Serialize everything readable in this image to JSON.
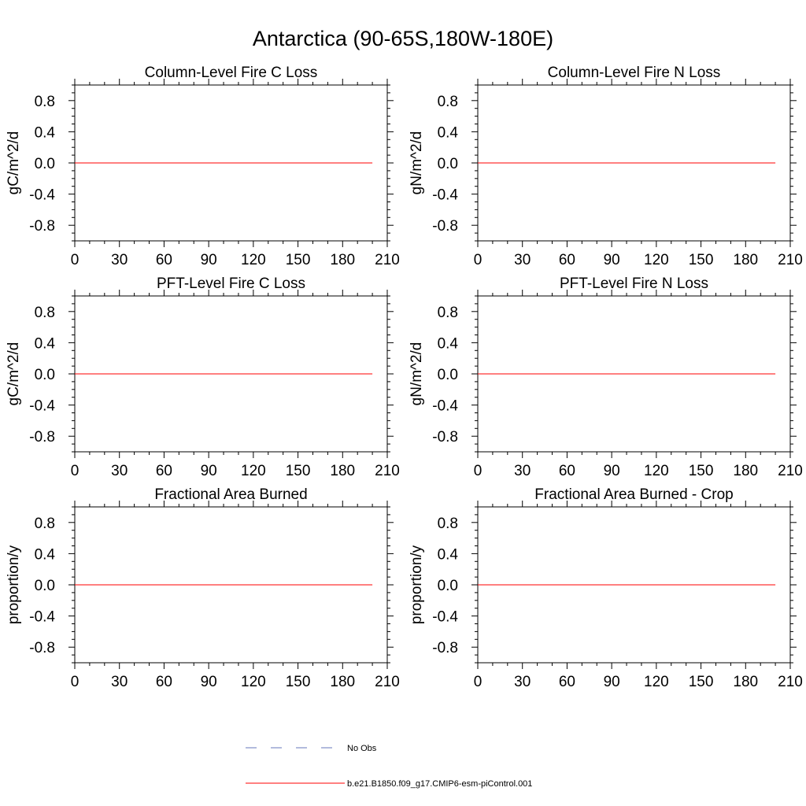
{
  "figure": {
    "title": "Antarctica (90-65S,180W-180E)"
  },
  "chart_data": [
    {
      "type": "line",
      "title": "Column-Level Fire C Loss",
      "xlabel": "",
      "ylabel": "gC/m^2/d",
      "xlim": [
        0,
        210
      ],
      "ylim": [
        -1.0,
        1.0
      ],
      "xticks": [
        0,
        30,
        60,
        90,
        120,
        150,
        180,
        210
      ],
      "yticks": [
        0.8,
        0.4,
        0.0,
        -0.4,
        -0.8
      ],
      "series": [
        {
          "name": "b.e21.B1850.f09_g17.CMIP6-esm-piControl.001",
          "color": "#ff0000",
          "x": [
            0,
            200
          ],
          "y": [
            0.0,
            0.0
          ]
        }
      ]
    },
    {
      "type": "line",
      "title": "Column-Level Fire N Loss",
      "xlabel": "",
      "ylabel": "gN/m^2/d",
      "xlim": [
        0,
        210
      ],
      "ylim": [
        -1.0,
        1.0
      ],
      "xticks": [
        0,
        30,
        60,
        90,
        120,
        150,
        180,
        210
      ],
      "yticks": [
        0.8,
        0.4,
        0.0,
        -0.4,
        -0.8
      ],
      "series": [
        {
          "name": "b.e21.B1850.f09_g17.CMIP6-esm-piControl.001",
          "color": "#ff0000",
          "x": [
            0,
            200
          ],
          "y": [
            0.0,
            0.0
          ]
        }
      ]
    },
    {
      "type": "line",
      "title": "PFT-Level Fire C Loss",
      "xlabel": "",
      "ylabel": "gC/m^2/d",
      "xlim": [
        0,
        210
      ],
      "ylim": [
        -1.0,
        1.0
      ],
      "xticks": [
        0,
        30,
        60,
        90,
        120,
        150,
        180,
        210
      ],
      "yticks": [
        0.8,
        0.4,
        0.0,
        -0.4,
        -0.8
      ],
      "series": [
        {
          "name": "b.e21.B1850.f09_g17.CMIP6-esm-piControl.001",
          "color": "#ff0000",
          "x": [
            0,
            200
          ],
          "y": [
            0.0,
            0.0
          ]
        }
      ]
    },
    {
      "type": "line",
      "title": "PFT-Level Fire N Loss",
      "xlabel": "",
      "ylabel": "gN/m^2/d",
      "xlim": [
        0,
        210
      ],
      "ylim": [
        -1.0,
        1.0
      ],
      "xticks": [
        0,
        30,
        60,
        90,
        120,
        150,
        180,
        210
      ],
      "yticks": [
        0.8,
        0.4,
        0.0,
        -0.4,
        -0.8
      ],
      "series": [
        {
          "name": "b.e21.B1850.f09_g17.CMIP6-esm-piControl.001",
          "color": "#ff0000",
          "x": [
            0,
            200
          ],
          "y": [
            0.0,
            0.0
          ]
        }
      ]
    },
    {
      "type": "line",
      "title": "Fractional Area Burned",
      "xlabel": "",
      "ylabel": "proportion/y",
      "xlim": [
        0,
        210
      ],
      "ylim": [
        -1.0,
        1.0
      ],
      "xticks": [
        0,
        30,
        60,
        90,
        120,
        150,
        180,
        210
      ],
      "yticks": [
        0.8,
        0.4,
        0.0,
        -0.4,
        -0.8
      ],
      "series": [
        {
          "name": "b.e21.B1850.f09_g17.CMIP6-esm-piControl.001",
          "color": "#ff0000",
          "x": [
            0,
            200
          ],
          "y": [
            0.0,
            0.0
          ]
        }
      ]
    },
    {
      "type": "line",
      "title": "Fractional Area Burned - Crop",
      "xlabel": "",
      "ylabel": "proportion/y",
      "xlim": [
        0,
        210
      ],
      "ylim": [
        -1.0,
        1.0
      ],
      "xticks": [
        0,
        30,
        60,
        90,
        120,
        150,
        180,
        210
      ],
      "yticks": [
        0.8,
        0.4,
        0.0,
        -0.4,
        -0.8
      ],
      "series": [
        {
          "name": "b.e21.B1850.f09_g17.CMIP6-esm-piControl.001",
          "color": "#ff0000",
          "x": [
            0,
            200
          ],
          "y": [
            0.0,
            0.0
          ]
        }
      ]
    }
  ],
  "legend": {
    "placement": "bottom-center",
    "entries": [
      {
        "label": "No Obs",
        "color": "#6677bb",
        "style": "dashed"
      },
      {
        "label": "b.e21.B1850.f09_g17.CMIP6-esm-piControl.001",
        "color": "#ff0000",
        "style": "solid"
      }
    ]
  }
}
